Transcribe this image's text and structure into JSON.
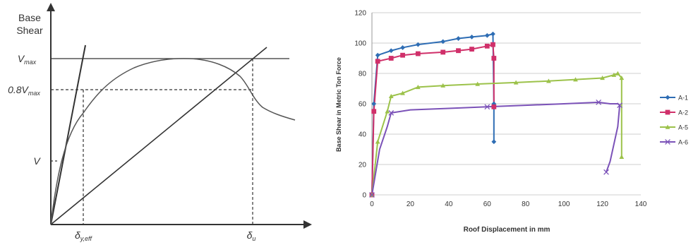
{
  "chart_data": [
    {
      "type": "line",
      "kind": "schematic",
      "ylabel_line1": "Base",
      "ylabel_line2": "Shear",
      "ylabels": [
        "V",
        "0.8V",
        "V"
      ],
      "ylabel_subscripts": [
        "max",
        "max",
        ""
      ],
      "xlabels": [
        "δ",
        "δ"
      ],
      "xlabel_subscripts": [
        "y,eff",
        "u"
      ],
      "curve": "pushover"
    },
    {
      "type": "line",
      "xlabel": "Roof Displacement in mm",
      "ylabel": "Base Shear in Metric Ton Force",
      "xlim": [
        0,
        140
      ],
      "ylim": [
        0,
        120
      ],
      "xticks": [
        0,
        20,
        40,
        60,
        80,
        100,
        120,
        140
      ],
      "yticks": [
        0,
        20,
        40,
        60,
        80,
        100,
        120
      ],
      "grid": "horizontal",
      "legend_position": "right",
      "series": [
        {
          "name": "A-1",
          "color": "#2e6db4",
          "marker": "diamond",
          "x": [
            0,
            1,
            3,
            10,
            16,
            24,
            37,
            45,
            52,
            60,
            63,
            63.5,
            63.5
          ],
          "y": [
            0,
            60,
            92,
            95,
            97,
            99,
            101,
            103,
            104,
            105,
            106,
            60,
            35
          ]
        },
        {
          "name": "A-2",
          "color": "#d0306a",
          "marker": "square",
          "x": [
            0,
            1,
            3,
            10,
            16,
            24,
            37,
            45,
            52,
            60,
            63,
            63.5,
            63.5
          ],
          "y": [
            0,
            55,
            88,
            90,
            92,
            93,
            94,
            95,
            96,
            98,
            99,
            90,
            58
          ]
        },
        {
          "name": "A-5",
          "color": "#9cc24a",
          "marker": "triangle",
          "x": [
            0,
            3,
            8,
            10,
            16,
            24,
            37,
            55,
            75,
            92,
            106,
            120,
            126,
            128,
            130,
            130
          ],
          "y": [
            0,
            35,
            55,
            65,
            67,
            71,
            72,
            73,
            74,
            75,
            76,
            77,
            79,
            80,
            77,
            25
          ]
        },
        {
          "name": "A-6",
          "color": "#7b52b8",
          "marker": "x",
          "x": [
            0,
            4,
            8,
            10,
            20,
            40,
            60,
            80,
            100,
            118,
            124,
            128,
            129,
            128,
            124,
            122
          ],
          "y": [
            0,
            30,
            45,
            54,
            56,
            57,
            58,
            59,
            60,
            61,
            60,
            60,
            59,
            45,
            22,
            15
          ]
        }
      ]
    }
  ]
}
